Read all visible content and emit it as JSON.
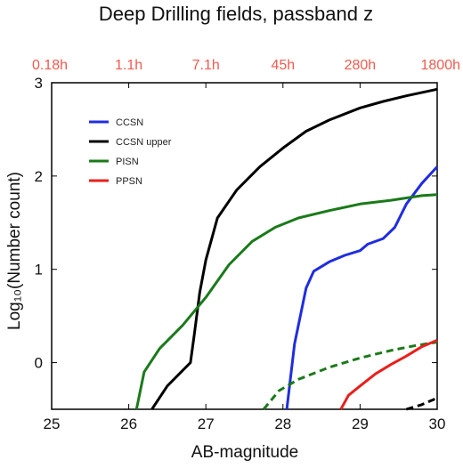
{
  "chart_data": {
    "type": "line",
    "title": "Deep Drilling fields, passband z",
    "xlabel": "AB-magnitude",
    "ylabel": "Log₁₀(Number count)",
    "xlim": [
      25,
      30
    ],
    "ylim": [
      -0.5,
      3
    ],
    "x_ticks": [
      "25",
      "26",
      "27",
      "28",
      "29",
      "30"
    ],
    "y_ticks": [
      "0",
      "1",
      "2",
      "3"
    ],
    "top_axis_ticks": [
      "0.18h",
      "1.1h",
      "7.1h",
      "45h",
      "280h",
      "1800h"
    ],
    "grid": false,
    "legend": {
      "placement": "upper-left",
      "entries": [
        {
          "label": "CCSN",
          "color": "#1f2de0"
        },
        {
          "label": "CCSN upper",
          "color": "#000000"
        },
        {
          "label": "PISN",
          "color": "#1a7a1a"
        },
        {
          "label": "PPSN",
          "color": "#e8201c"
        }
      ]
    },
    "series": [
      {
        "name": "CCSN",
        "color": "#1f2de0",
        "dash": "solid",
        "points": [
          [
            28.05,
            -0.5
          ],
          [
            28.15,
            0.2
          ],
          [
            28.3,
            0.8
          ],
          [
            28.4,
            0.98
          ],
          [
            28.6,
            1.08
          ],
          [
            28.8,
            1.15
          ],
          [
            29.0,
            1.2
          ],
          [
            29.1,
            1.27
          ],
          [
            29.3,
            1.33
          ],
          [
            29.45,
            1.45
          ],
          [
            29.6,
            1.7
          ],
          [
            29.8,
            1.92
          ],
          [
            30.0,
            2.1
          ]
        ]
      },
      {
        "name": "CCSN upper",
        "color": "#000000",
        "dash": "solid",
        "points": [
          [
            26.3,
            -0.5
          ],
          [
            26.5,
            -0.25
          ],
          [
            26.8,
            0.0
          ],
          [
            26.85,
            0.3
          ],
          [
            26.92,
            0.75
          ],
          [
            27.0,
            1.1
          ],
          [
            27.15,
            1.55
          ],
          [
            27.4,
            1.85
          ],
          [
            27.7,
            2.1
          ],
          [
            28.0,
            2.3
          ],
          [
            28.3,
            2.48
          ],
          [
            28.6,
            2.6
          ],
          [
            29.0,
            2.73
          ],
          [
            29.3,
            2.8
          ],
          [
            29.6,
            2.86
          ],
          [
            30.0,
            2.93
          ]
        ]
      },
      {
        "name": "PISN",
        "color": "#1a7a1a",
        "dash": "solid",
        "points": [
          [
            26.1,
            -0.5
          ],
          [
            26.2,
            -0.1
          ],
          [
            26.4,
            0.15
          ],
          [
            26.7,
            0.4
          ],
          [
            27.0,
            0.7
          ],
          [
            27.3,
            1.05
          ],
          [
            27.6,
            1.3
          ],
          [
            27.9,
            1.45
          ],
          [
            28.2,
            1.55
          ],
          [
            28.6,
            1.63
          ],
          [
            29.0,
            1.7
          ],
          [
            29.4,
            1.74
          ],
          [
            29.8,
            1.79
          ],
          [
            30.0,
            1.8
          ]
        ]
      },
      {
        "name": "PISN (dashed)",
        "color": "#1a7a1a",
        "dash": "dashed",
        "points": [
          [
            27.75,
            -0.5
          ],
          [
            27.95,
            -0.3
          ],
          [
            28.2,
            -0.18
          ],
          [
            28.6,
            -0.05
          ],
          [
            29.0,
            0.05
          ],
          [
            29.4,
            0.13
          ],
          [
            29.7,
            0.18
          ],
          [
            30.0,
            0.22
          ]
        ]
      },
      {
        "name": "PPSN",
        "color": "#e8201c",
        "dash": "solid",
        "points": [
          [
            28.75,
            -0.5
          ],
          [
            28.85,
            -0.35
          ],
          [
            29.0,
            -0.25
          ],
          [
            29.2,
            -0.12
          ],
          [
            29.4,
            -0.02
          ],
          [
            29.6,
            0.07
          ],
          [
            29.8,
            0.17
          ],
          [
            30.0,
            0.24
          ]
        ]
      },
      {
        "name": "CCSN upper (dashed)",
        "color": "#000000",
        "dash": "dashed",
        "points": [
          [
            29.6,
            -0.5
          ],
          [
            29.8,
            -0.45
          ],
          [
            30.0,
            -0.38
          ]
        ]
      }
    ]
  }
}
